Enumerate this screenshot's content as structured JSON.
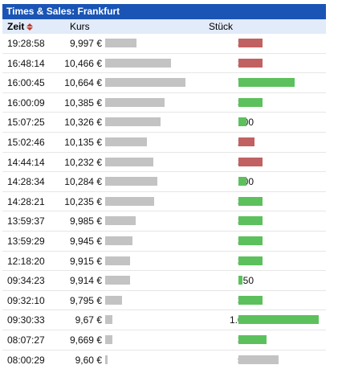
{
  "title": "Times & Sales: Frankfurt",
  "columns": {
    "time": "Zeit",
    "price": "Kurs",
    "qty": "Stück"
  },
  "colors": {
    "up": "#5cc15c",
    "down": "#c26161",
    "neutral": "#c3c3c3",
    "header_bg": "#1a55b5"
  },
  "scale": {
    "price_min": 9.57,
    "price_max": 10.7,
    "qty_max": 1000
  },
  "rows": [
    {
      "time": "19:28:58",
      "price": "9,997 €",
      "price_value": 9.997,
      "qty": "300",
      "qty_value": 300,
      "direction": "down"
    },
    {
      "time": "16:48:14",
      "price": "10,466 €",
      "price_value": 10.466,
      "qty": "300",
      "qty_value": 300,
      "direction": "down"
    },
    {
      "time": "16:00:45",
      "price": "10,664 €",
      "price_value": 10.664,
      "qty": "700",
      "qty_value": 700,
      "direction": "up"
    },
    {
      "time": "16:00:09",
      "price": "10,385 €",
      "price_value": 10.385,
      "qty": "300",
      "qty_value": 300,
      "direction": "up"
    },
    {
      "time": "15:07:25",
      "price": "10,326 €",
      "price_value": 10.326,
      "qty": "100",
      "qty_value": 100,
      "direction": "up"
    },
    {
      "time": "15:02:46",
      "price": "10,135 €",
      "price_value": 10.135,
      "qty": "200",
      "qty_value": 200,
      "direction": "down"
    },
    {
      "time": "14:44:14",
      "price": "10,232 €",
      "price_value": 10.232,
      "qty": "300",
      "qty_value": 300,
      "direction": "down"
    },
    {
      "time": "14:28:34",
      "price": "10,284 €",
      "price_value": 10.284,
      "qty": "100",
      "qty_value": 100,
      "direction": "up"
    },
    {
      "time": "14:28:21",
      "price": "10,235 €",
      "price_value": 10.235,
      "qty": "300",
      "qty_value": 300,
      "direction": "up"
    },
    {
      "time": "13:59:37",
      "price": "9,985 €",
      "price_value": 9.985,
      "qty": "300",
      "qty_value": 300,
      "direction": "up"
    },
    {
      "time": "13:59:29",
      "price": "9,945 €",
      "price_value": 9.945,
      "qty": "300",
      "qty_value": 300,
      "direction": "up"
    },
    {
      "time": "12:18:20",
      "price": "9,915 €",
      "price_value": 9.915,
      "qty": "300",
      "qty_value": 300,
      "direction": "up"
    },
    {
      "time": "09:34:23",
      "price": "9,914 €",
      "price_value": 9.914,
      "qty": "50",
      "qty_value": 50,
      "direction": "up"
    },
    {
      "time": "09:32:10",
      "price": "9,795 €",
      "price_value": 9.795,
      "qty": "300",
      "qty_value": 300,
      "direction": "up"
    },
    {
      "time": "09:30:33",
      "price": "9,67 €",
      "price_value": 9.67,
      "qty": "1.000",
      "qty_value": 1000,
      "direction": "up"
    },
    {
      "time": "08:07:27",
      "price": "9,669 €",
      "price_value": 9.669,
      "qty": "350",
      "qty_value": 350,
      "direction": "up"
    },
    {
      "time": "08:00:29",
      "price": "9,60 €",
      "price_value": 9.6,
      "qty": "500",
      "qty_value": 500,
      "direction": "neutral"
    }
  ]
}
